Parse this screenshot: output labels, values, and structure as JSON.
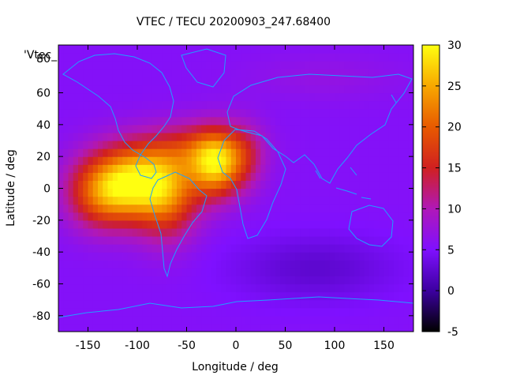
{
  "chart_data": {
    "type": "heatmap",
    "title": "VTEC / TECU 20200903_247.68400",
    "xlabel": "Longitude / deg",
    "ylabel": "Latitude / deg",
    "xlim": [
      -180,
      180
    ],
    "ylim": [
      -90,
      90
    ],
    "x_ticks": [
      -150,
      -100,
      -50,
      0,
      50,
      100,
      150
    ],
    "y_ticks": [
      60,
      40,
      20,
      0,
      -20,
      -40,
      -60,
      -80
    ],
    "y_ticks_partial": [
      "80"
    ],
    "overlay_label": "'Vtec_",
    "colorbar": {
      "range": [
        -5,
        30
      ],
      "ticks": [
        30,
        25,
        20,
        15,
        10,
        5,
        0,
        -5
      ],
      "stops": [
        {
          "v": -5,
          "color": "#000000"
        },
        {
          "v": 0,
          "color": "#3c00a0"
        },
        {
          "v": 5,
          "color": "#7f10ff"
        },
        {
          "v": 10,
          "color": "#b018b8"
        },
        {
          "v": 15,
          "color": "#d02020"
        },
        {
          "v": 20,
          "color": "#e85a00"
        },
        {
          "v": 25,
          "color": "#f8a800"
        },
        {
          "v": 30,
          "color": "#ffff10"
        }
      ]
    },
    "grid": {
      "cell_deg": 5,
      "background_value": 5.5,
      "anomalies": [
        {
          "lon": -100,
          "lat": 5,
          "slon": 35,
          "slat": 16,
          "amp": 21
        },
        {
          "lon": -135,
          "lat": -5,
          "slon": 25,
          "slat": 15,
          "amp": 10
        },
        {
          "lon": -70,
          "lat": -10,
          "slon": 22,
          "slat": 18,
          "amp": 9
        },
        {
          "lon": -20,
          "lat": 15,
          "slon": 18,
          "slat": 14,
          "amp": 18
        },
        {
          "lon": -40,
          "lat": 25,
          "slon": 35,
          "slat": 12,
          "amp": 8
        },
        {
          "lon": 10,
          "lat": 20,
          "slon": 15,
          "slat": 15,
          "amp": 5
        },
        {
          "lon": 80,
          "lat": -50,
          "slon": 60,
          "slat": 15,
          "amp": -3
        },
        {
          "lon": 90,
          "lat": 70,
          "slon": 60,
          "slat": 10,
          "amp": 1.5
        }
      ]
    },
    "coastline_color": "#1fa0ff"
  }
}
